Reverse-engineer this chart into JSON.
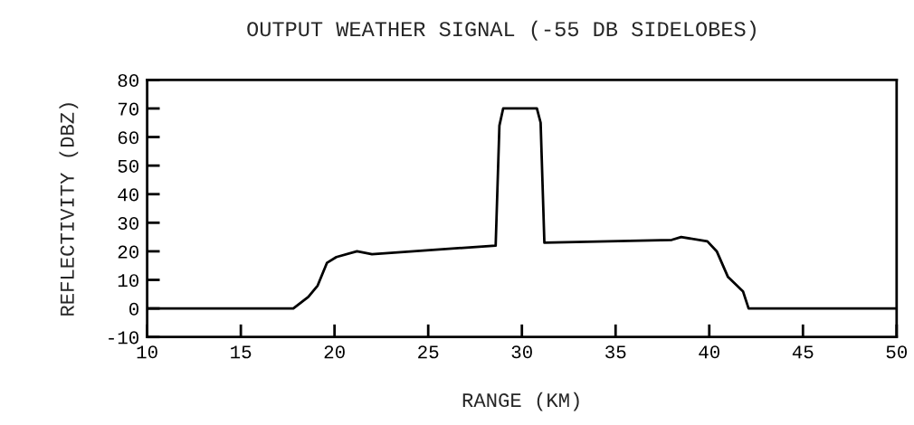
{
  "chart_data": {
    "type": "line",
    "title": "OUTPUT WEATHER SIGNAL (-55 DB SIDELOBES)",
    "xlabel": "RANGE (KM)",
    "ylabel": "REFLECTIVITY (DBZ)",
    "x": [
      10,
      17.8,
      18.6,
      19.1,
      19.6,
      20.1,
      21.2,
      22.0,
      28.6,
      28.8,
      29.0,
      30.8,
      31.0,
      31.2,
      38.0,
      38.5,
      39.9,
      40.4,
      41.0,
      41.8,
      42.1,
      50
    ],
    "series": [
      {
        "color": "#000000",
        "values": [
          0,
          0,
          4,
          8,
          16,
          18,
          20,
          19,
          22,
          64,
          70,
          70,
          65,
          23,
          24,
          25,
          23.5,
          20,
          11,
          6,
          0,
          0
        ]
      }
    ],
    "xlim": [
      10,
      50
    ],
    "xticks": [
      10,
      15,
      20,
      25,
      30,
      35,
      40,
      45,
      50
    ],
    "ylim": [
      -10,
      80
    ],
    "yticks": [
      -10,
      0,
      10,
      20,
      30,
      40,
      50,
      60,
      70,
      80
    ],
    "grid": false,
    "marker": "none",
    "line_style": "solid"
  }
}
